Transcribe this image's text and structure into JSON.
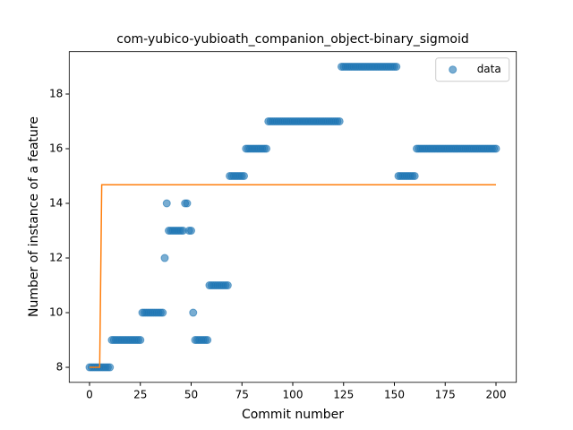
{
  "chart_data": {
    "type": "scatter",
    "title": "com-yubico-yubioath_companion_object-binary_sigmoid",
    "xlabel": "Commit number",
    "ylabel": "Number of instance of a feature",
    "xlim": [
      -10,
      210
    ],
    "ylim": [
      7.45,
      19.55
    ],
    "xticks": [
      0,
      25,
      50,
      75,
      100,
      125,
      150,
      175,
      200
    ],
    "yticks": [
      8,
      10,
      12,
      14,
      16,
      18
    ],
    "legend": "upper right",
    "series": [
      {
        "name": "data",
        "color": "#1f77b4",
        "x": [
          0,
          1,
          2,
          3,
          4,
          5,
          6,
          7,
          8,
          9,
          10,
          11,
          12,
          13,
          14,
          15,
          16,
          17,
          18,
          19,
          20,
          21,
          22,
          23,
          24,
          25,
          26,
          27,
          28,
          29,
          30,
          31,
          32,
          33,
          34,
          35,
          36,
          37,
          38,
          39,
          40,
          41,
          42,
          43,
          44,
          45,
          46,
          47,
          48,
          49,
          50,
          51,
          52,
          53,
          54,
          55,
          56,
          57,
          58,
          59,
          60,
          61,
          62,
          63,
          64,
          65,
          66,
          67,
          68,
          69,
          70,
          71,
          72,
          73,
          74,
          75,
          76,
          77,
          78,
          79,
          80,
          81,
          82,
          83,
          84,
          85,
          86,
          87,
          88,
          89,
          90,
          91,
          92,
          93,
          94,
          95,
          96,
          97,
          98,
          99,
          100,
          101,
          102,
          103,
          104,
          105,
          106,
          107,
          108,
          109,
          110,
          111,
          112,
          113,
          114,
          115,
          116,
          117,
          118,
          119,
          120,
          121,
          122,
          123,
          124,
          125,
          126,
          127,
          128,
          129,
          130,
          131,
          132,
          133,
          134,
          135,
          136,
          137,
          138,
          139,
          140,
          141,
          142,
          143,
          144,
          145,
          146,
          147,
          148,
          149,
          150,
          151,
          152,
          153,
          154,
          155,
          156,
          157,
          158,
          159,
          160,
          161,
          162,
          163,
          164,
          165,
          166,
          167,
          168,
          169,
          170,
          171,
          172,
          173,
          174,
          175,
          176,
          177,
          178,
          179,
          180,
          181,
          182,
          183,
          184,
          185,
          186,
          187,
          188,
          189,
          190,
          191,
          192,
          193,
          194,
          195,
          196,
          197,
          198,
          199,
          200
        ],
        "values": [
          8,
          8,
          8,
          8,
          8,
          8,
          8,
          8,
          8,
          8,
          8,
          9,
          9,
          9,
          9,
          9,
          9,
          9,
          9,
          9,
          9,
          9,
          9,
          9,
          9,
          9,
          10,
          10,
          10,
          10,
          10,
          10,
          10,
          10,
          10,
          10,
          10,
          12,
          14,
          13,
          13,
          13,
          13,
          13,
          13,
          13,
          13,
          14,
          14,
          13,
          13,
          10,
          9,
          9,
          9,
          9,
          9,
          9,
          9,
          11,
          11,
          11,
          11,
          11,
          11,
          11,
          11,
          11,
          11,
          15,
          15,
          15,
          15,
          15,
          15,
          15,
          15,
          16,
          16,
          16,
          16,
          16,
          16,
          16,
          16,
          16,
          16,
          16,
          17,
          17,
          17,
          17,
          17,
          17,
          17,
          17,
          17,
          17,
          17,
          17,
          17,
          17,
          17,
          17,
          17,
          17,
          17,
          17,
          17,
          17,
          17,
          17,
          17,
          17,
          17,
          17,
          17,
          17,
          17,
          17,
          17,
          17,
          17,
          17,
          19,
          19,
          19,
          19,
          19,
          19,
          19,
          19,
          19,
          19,
          19,
          19,
          19,
          19,
          19,
          19,
          19,
          19,
          19,
          19,
          19,
          19,
          19,
          19,
          19,
          19,
          19,
          19,
          15,
          15,
          15,
          15,
          15,
          15,
          15,
          15,
          15,
          16,
          16,
          16,
          16,
          16,
          16,
          16,
          16,
          16,
          16,
          16,
          16,
          16,
          16,
          16,
          16,
          16,
          16,
          16,
          16,
          16,
          16,
          16,
          16,
          16,
          16,
          16,
          16,
          16,
          16,
          16,
          16,
          16,
          16,
          16,
          16,
          16,
          16,
          16,
          16
        ]
      }
    ],
    "fit": {
      "color": "#ff7f0e",
      "x": [
        0,
        5,
        6,
        200
      ],
      "values": [
        8,
        8,
        14.68,
        14.68
      ]
    }
  }
}
